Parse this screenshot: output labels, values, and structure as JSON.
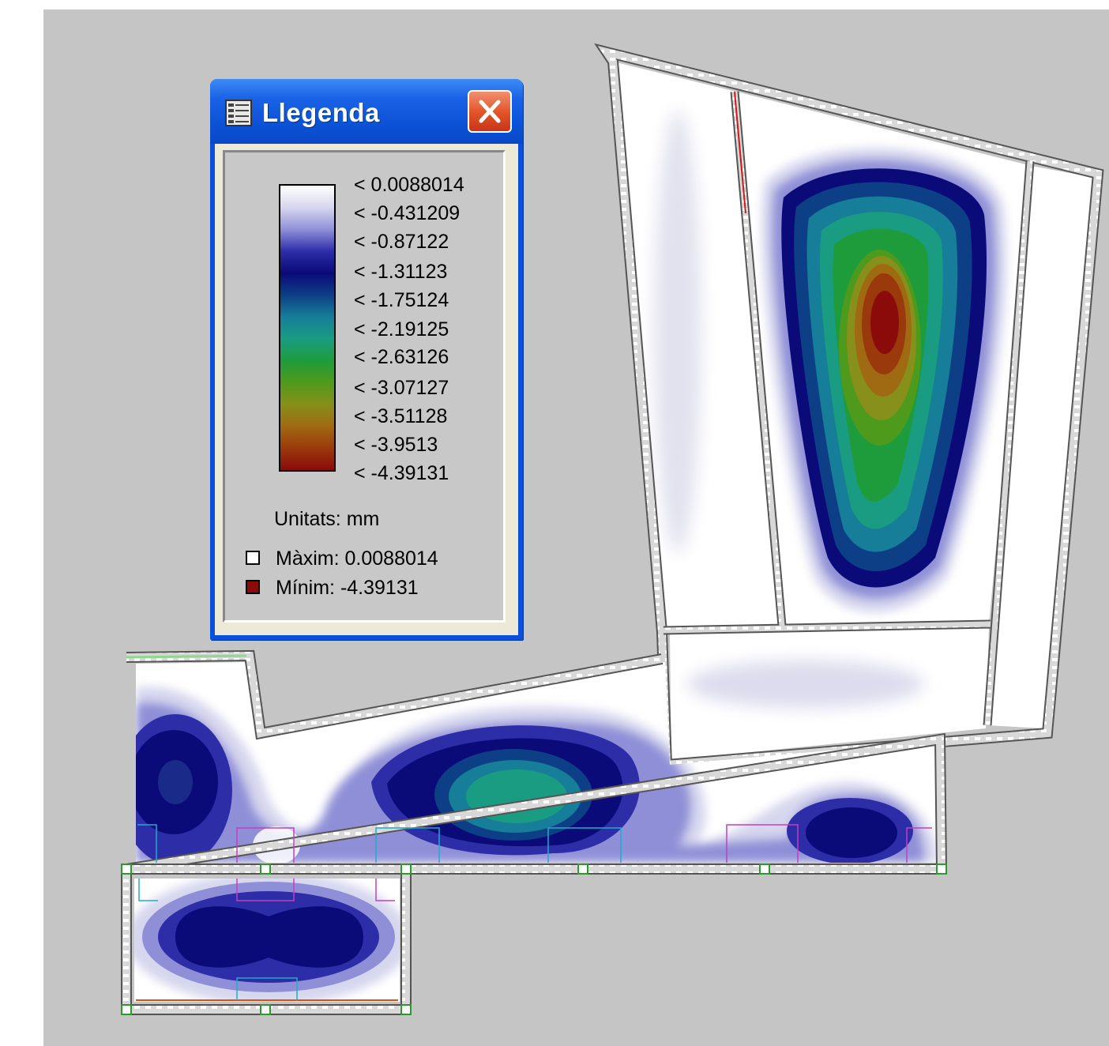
{
  "legend": {
    "title": "Llegenda",
    "title_icon": "legend-list-icon",
    "close_icon": "close-x-icon",
    "labels": [
      "< 0.0088014",
      "< -0.431209",
      "< -0.87122",
      "< -1.31123",
      "< -1.75124",
      "< -2.19125",
      "< -2.63126",
      "< -3.07127",
      "< -3.51128",
      "< -3.9513",
      "< -4.39131"
    ],
    "units": "Unitats: mm",
    "max": {
      "label": "Màxim:",
      "value": "0.0088014",
      "swatch_color": "#ffffff"
    },
    "min": {
      "label": "Mínim:",
      "value": "-4.39131",
      "swatch_color": "#8b0a0a"
    },
    "colors": [
      "#ffffff",
      "#d6d6ee",
      "#8f8fd8",
      "#2d2da8",
      "#0a0a78",
      "#0d3f86",
      "#167e98",
      "#1a9c82",
      "#1e9c3c",
      "#4e9a1c",
      "#86901a",
      "#a06a12",
      "#9a3a0c",
      "#8b0a0a"
    ]
  }
}
